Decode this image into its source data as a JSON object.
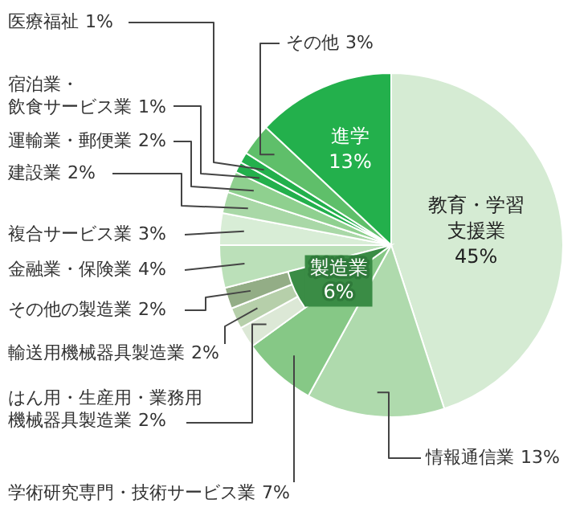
{
  "chart_data": {
    "type": "pie",
    "categories": [
      "教育・学習支援業",
      "情報通信業",
      "学術研究専門・技術サービス業",
      "はん用・生産用・業務用機械器具製造業",
      "輸送用機械器具製造業",
      "その他の製造業",
      "金融業・保険業",
      "複合サービス業",
      "建設業",
      "運輸業・郵便業",
      "宿泊業・飲食サービス業",
      "医療福祉",
      "その他",
      "進学"
    ],
    "series": [
      {
        "values": [
          45,
          13,
          7,
          2,
          2,
          2,
          4,
          3,
          2,
          2,
          1,
          1,
          3,
          13
        ],
        "colors": [
          "#d5ebd3",
          "#afdaad",
          "#86c886",
          "#dce8d6",
          "#b6cfaa",
          "#93ad86",
          "#bbe0b9",
          "#d8edd6",
          "#a9d8a7",
          "#8fd08f",
          "#23b04c",
          "#23b04c",
          "#5fbf6a",
          "#23b04c"
        ],
        "value_labels": [
          "45%",
          "13%",
          "7%",
          "2%",
          "2%",
          "2%",
          "4%",
          "3%",
          "2%",
          "2%",
          "1%",
          "1%",
          "3%",
          "13%"
        ]
      }
    ],
    "annotations": [
      "製造業 6%"
    ],
    "legend": false
  }
}
